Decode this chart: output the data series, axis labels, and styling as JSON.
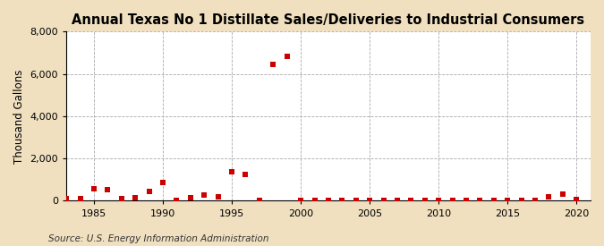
{
  "title": "Annual Texas No 1 Distillate Sales/Deliveries to Industrial Consumers",
  "ylabel": "Thousand Gallons",
  "source": "Source: U.S. Energy Information Administration",
  "outer_background_color": "#F0E0C0",
  "plot_background_color": "#FFFFFF",
  "marker_color": "#CC0000",
  "marker": "s",
  "marker_size": 4,
  "ylim": [
    0,
    8000
  ],
  "yticks": [
    0,
    2000,
    4000,
    6000,
    8000
  ],
  "xlim": [
    1983,
    2021
  ],
  "xticks": [
    1985,
    1990,
    1995,
    2000,
    2005,
    2010,
    2015,
    2020
  ],
  "data": [
    [
      1983,
      100
    ],
    [
      1984,
      120
    ],
    [
      1985,
      570
    ],
    [
      1986,
      530
    ],
    [
      1987,
      120
    ],
    [
      1988,
      160
    ],
    [
      1989,
      430
    ],
    [
      1990,
      850
    ],
    [
      1991,
      5
    ],
    [
      1992,
      160
    ],
    [
      1993,
      290
    ],
    [
      1994,
      210
    ],
    [
      1995,
      1380
    ],
    [
      1996,
      1260
    ],
    [
      1997,
      35
    ],
    [
      1998,
      6450
    ],
    [
      1999,
      6850
    ],
    [
      2000,
      25
    ],
    [
      2001,
      15
    ],
    [
      2002,
      10
    ],
    [
      2003,
      30
    ],
    [
      2004,
      25
    ],
    [
      2005,
      20
    ],
    [
      2006,
      15
    ],
    [
      2007,
      20
    ],
    [
      2008,
      15
    ],
    [
      2009,
      20
    ],
    [
      2010,
      25
    ],
    [
      2011,
      20
    ],
    [
      2012,
      15
    ],
    [
      2013,
      20
    ],
    [
      2014,
      15
    ],
    [
      2015,
      20
    ],
    [
      2016,
      10
    ],
    [
      2017,
      10
    ],
    [
      2018,
      190
    ],
    [
      2019,
      300
    ],
    [
      2020,
      55
    ]
  ],
  "grid_color": "#AAAAAA",
  "grid_linestyle": "--",
  "title_fontsize": 10.5,
  "tick_fontsize": 8,
  "ylabel_fontsize": 8.5,
  "source_fontsize": 7.5
}
